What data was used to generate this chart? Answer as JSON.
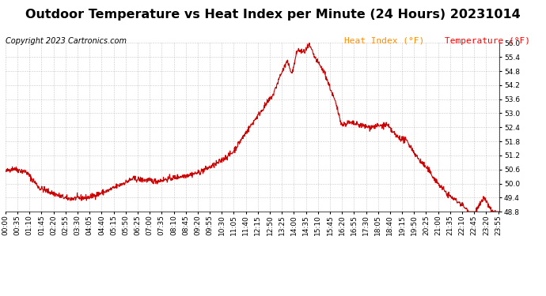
{
  "title": "Outdoor Temperature vs Heat Index per Minute (24 Hours) 20231014",
  "copyright": "Copyright 2023 Cartronics.com",
  "legend_heat": "Heat Index (°F)",
  "legend_temp": "Temperature (°F)",
  "y_min": 48.8,
  "y_max": 56.0,
  "y_ticks": [
    48.8,
    49.4,
    50.0,
    50.6,
    51.2,
    51.8,
    52.4,
    53.0,
    53.6,
    54.2,
    54.8,
    55.4,
    56.0
  ],
  "line_color": "#cc0000",
  "grid_color": "#bbbbbb",
  "title_fontsize": 11.5,
  "copyright_fontsize": 7,
  "legend_heat_fontsize": 8,
  "legend_temp_fontsize": 8,
  "tick_fontsize": 6.5,
  "background_color": "#ffffff",
  "tick_interval": 35
}
